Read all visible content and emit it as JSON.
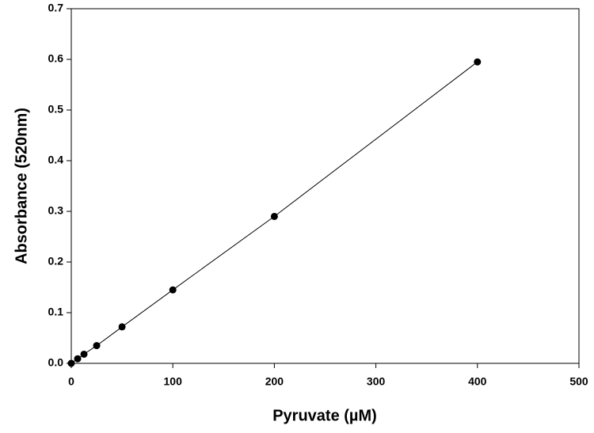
{
  "chart_data": {
    "type": "line",
    "x_label": "Pyruvate (µM)",
    "y_label": "Absorbance (520nm)",
    "x": [
      0,
      6.25,
      12.5,
      25,
      50,
      100,
      200,
      400
    ],
    "series": [
      {
        "color": "#000000",
        "values": [
          0,
          0.009,
          0.018,
          0.035,
          0.072,
          0.145,
          0.29,
          0.595
        ]
      }
    ],
    "markers": true,
    "xlim": [
      0,
      500
    ],
    "xticks": [
      0,
      100,
      200,
      300,
      400,
      500
    ],
    "ylim": [
      0,
      0.7
    ],
    "yticks": [
      {
        "value": 0,
        "label": "0.0"
      },
      {
        "value": 0.1,
        "label": "0.1"
      },
      {
        "value": 0.2,
        "label": "0.2"
      },
      {
        "value": 0.3,
        "label": "0.3"
      },
      {
        "value": 0.4,
        "label": "0.4"
      },
      {
        "value": 0.5,
        "label": "0.5"
      },
      {
        "value": 0.6,
        "label": "0.6"
      },
      {
        "value": 0.7,
        "label": "0.7"
      }
    ],
    "grid": false
  }
}
